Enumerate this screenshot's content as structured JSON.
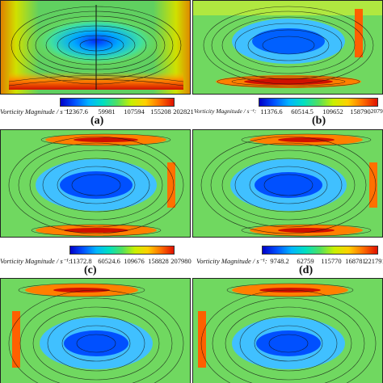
{
  "panels": [
    {
      "id": "a",
      "caption": "(a)",
      "colorbar": {
        "label": "Vorticity Magnitude / s⁻¹:",
        "ticks": [
          "12367.6",
          "59981",
          "107594",
          "155208",
          "202821"
        ]
      }
    },
    {
      "id": "b",
      "caption": "(b)",
      "colorbar": {
        "label": "Vorticity Magnitude / s⁻¹:",
        "ticks": [
          "11376.6",
          "60514.5",
          "109652",
          "158790",
          "207928"
        ]
      }
    },
    {
      "id": "c",
      "caption": "(c)",
      "colorbar": {
        "label": "Vorticity Magnitude / s⁻¹:",
        "ticks": [
          "11372.8",
          "60524.6",
          "109676",
          "158828",
          "207980"
        ]
      }
    },
    {
      "id": "d",
      "caption": "(d)",
      "colorbar": {
        "label": "Vorticity Magnitude / s⁻¹:",
        "ticks": [
          "9748.2",
          "62759",
          "115770",
          "168781",
          "221791"
        ]
      }
    },
    {
      "id": "e"
    },
    {
      "id": "f"
    }
  ],
  "colors": {
    "low": "#0000c8",
    "mid": "#50e060",
    "high": "#e01000"
  }
}
